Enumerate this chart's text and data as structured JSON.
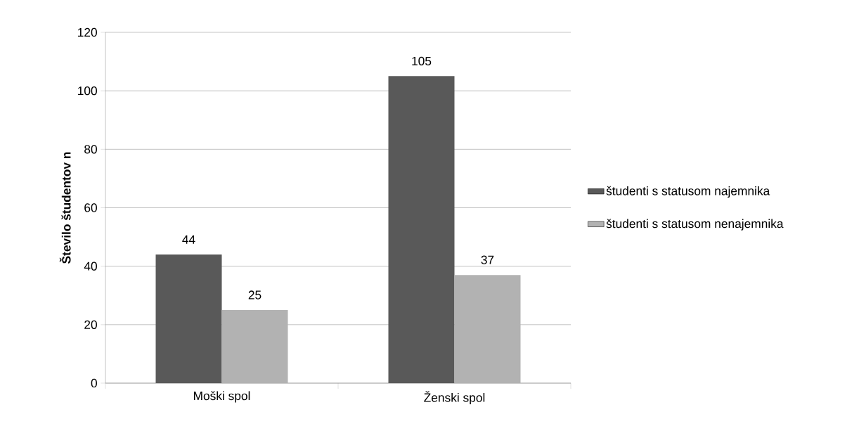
{
  "chart_data": {
    "type": "bar",
    "ylabel": "Število študentov n",
    "categories": [
      "Moški spol",
      "Ženski spol"
    ],
    "series": [
      {
        "name": "študenti s statusom najemnika",
        "color": "#595959",
        "values": [
          44,
          105
        ]
      },
      {
        "name": "študenti s statusom nenajemnika",
        "color": "#b2b2b2",
        "values": [
          25,
          37
        ]
      }
    ],
    "ylim": [
      0,
      120
    ],
    "yticks": [
      0,
      20,
      40,
      60,
      80,
      100,
      120
    ],
    "grid": "y",
    "legend": "right",
    "data_labels": true
  }
}
